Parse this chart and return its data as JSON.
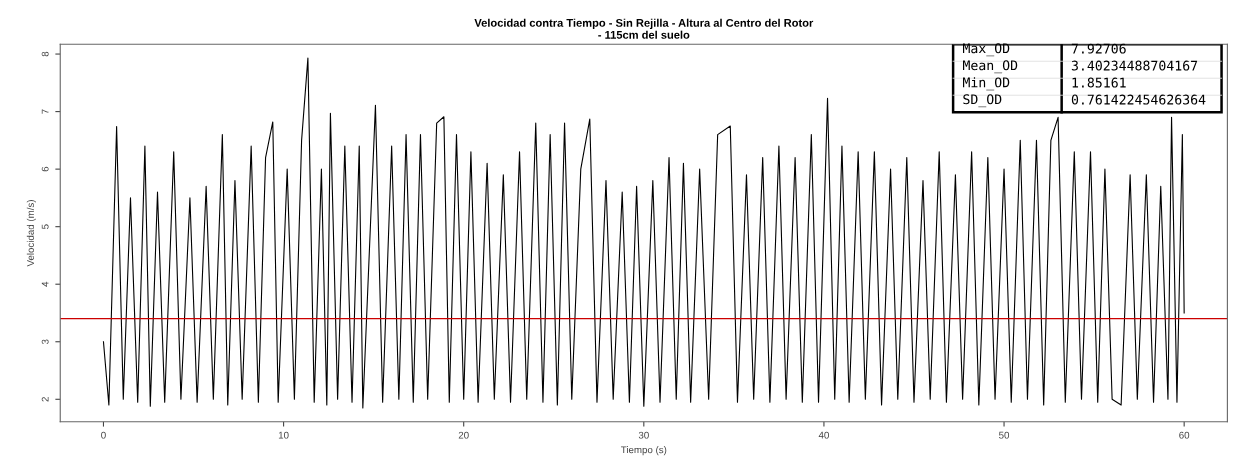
{
  "chart_data": {
    "type": "line",
    "title": "Velocidad contra Tiempo - Sin Rejilla - Altura al Centro del Rotor\n- 115cm del suelo",
    "xlabel": "Tiempo (s)",
    "ylabel": "Velocidad (m/s)",
    "x": [
      0,
      0.3,
      0.73,
      1.1,
      1.5,
      1.9,
      2.3,
      2.6,
      3.0,
      3.4,
      3.9,
      4.3,
      4.8,
      5.2,
      5.7,
      6.1,
      6.6,
      6.9,
      7.3,
      7.7,
      8.2,
      8.6,
      9.0,
      9.4,
      9.7,
      10.2,
      10.6,
      11.0,
      11.35,
      11.7,
      12.1,
      12.4,
      12.6,
      13.0,
      13.4,
      13.8,
      14.2,
      14.4,
      15.1,
      15.5,
      16.0,
      16.4,
      16.8,
      17.2,
      17.6,
      18.0,
      18.5,
      18.9,
      19.2,
      19.6,
      20.0,
      20.4,
      20.8,
      21.3,
      21.7,
      22.2,
      22.6,
      23.1,
      23.5,
      24.0,
      24.4,
      24.8,
      25.2,
      25.6,
      26.0,
      26.5,
      27.0,
      27.4,
      27.9,
      28.3,
      28.8,
      29.2,
      29.6,
      30.0,
      30.5,
      30.9,
      31.4,
      31.8,
      32.2,
      32.6,
      33.1,
      33.6,
      34.1,
      34.8,
      35.2,
      35.7,
      36.1,
      36.6,
      37.0,
      37.5,
      37.9,
      38.4,
      38.8,
      39.3,
      39.7,
      40.2,
      40.6,
      41.0,
      41.4,
      41.9,
      42.3,
      42.8,
      43.2,
      43.7,
      44.1,
      44.6,
      45.0,
      45.5,
      45.9,
      46.4,
      46.8,
      47.3,
      47.7,
      48.2,
      48.6,
      49.1,
      49.5,
      50.0,
      50.4,
      50.9,
      51.3,
      51.8,
      52.2,
      52.6,
      53.0,
      53.4,
      53.9,
      54.3,
      54.8,
      55.2,
      55.6,
      56.0,
      56.5,
      57.0,
      57.4,
      57.9,
      58.3,
      58.7,
      59.1,
      59.3,
      59.6,
      59.9,
      60.0
    ],
    "series": [
      {
        "color": "#000000",
        "values": [
          3.0,
          1.9,
          6.74,
          2.0,
          5.5,
          1.95,
          6.4,
          1.88,
          5.6,
          1.95,
          6.3,
          2.0,
          5.5,
          1.95,
          5.7,
          2.0,
          6.6,
          1.9,
          5.8,
          2.0,
          6.4,
          1.95,
          6.2,
          6.82,
          1.95,
          6.0,
          2.0,
          6.5,
          7.93,
          1.95,
          6.0,
          1.9,
          6.97,
          2.0,
          6.4,
          1.95,
          6.4,
          1.85,
          7.11,
          1.95,
          6.4,
          2.0,
          6.6,
          1.95,
          6.6,
          2.0,
          6.8,
          6.91,
          1.95,
          6.6,
          2.0,
          6.3,
          1.95,
          6.1,
          2.0,
          5.9,
          1.95,
          6.3,
          2.0,
          6.8,
          1.95,
          6.6,
          1.9,
          6.8,
          2.0,
          6.0,
          6.87,
          1.95,
          5.8,
          2.0,
          5.6,
          1.95,
          5.7,
          1.88,
          5.8,
          1.95,
          6.2,
          2.0,
          6.1,
          1.95,
          6.0,
          2.0,
          6.6,
          6.75,
          1.95,
          5.9,
          2.0,
          6.2,
          1.95,
          6.4,
          2.0,
          6.2,
          1.95,
          6.6,
          1.95,
          7.23,
          2.0,
          6.4,
          1.95,
          6.3,
          2.0,
          6.3,
          1.9,
          6.0,
          2.0,
          6.2,
          1.95,
          5.8,
          2.0,
          6.3,
          1.95,
          5.9,
          2.0,
          6.3,
          1.9,
          6.2,
          2.0,
          6.0,
          1.95,
          6.5,
          2.0,
          6.5,
          1.9,
          6.5,
          6.9,
          1.95,
          6.3,
          2.0,
          6.3,
          1.95,
          6.0,
          2.0,
          1.9,
          5.9,
          2.0,
          5.9,
          1.95,
          5.7,
          2.0,
          6.9,
          1.95,
          6.6,
          3.5
        ]
      }
    ],
    "xlim": [
      -2.4,
      62.4
    ],
    "xticks": [
      0,
      10,
      20,
      30,
      40,
      50,
      60
    ],
    "ylim": [
      1.61,
      8.17
    ],
    "yticks": [
      2,
      3,
      4,
      5,
      6,
      7,
      8
    ],
    "ref_lines": [
      {
        "axis": "y",
        "value": 3.40234488704167,
        "color": "#cc0000"
      }
    ],
    "annotations": [
      "Max_OD",
      "7.92706",
      "Mean_OD",
      "3.40234488704167",
      "Min_OD",
      "1.85161",
      "SD_OD",
      "0.761422454626364"
    ],
    "grid": false,
    "legend": false,
    "marker": "none",
    "line_style": "solid"
  }
}
